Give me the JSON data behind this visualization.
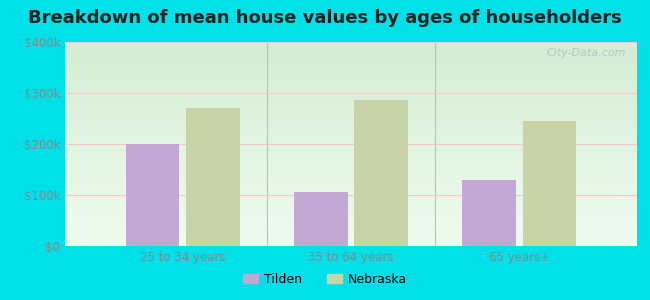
{
  "title": "Breakdown of mean house values by ages of householders",
  "categories": [
    "25 to 34 years",
    "35 to 64 years",
    "65 years+"
  ],
  "tilden_values": [
    200000,
    105000,
    130000
  ],
  "nebraska_values": [
    270000,
    287000,
    245000
  ],
  "tilden_color": "#c4a8d4",
  "nebraska_color": "#c8d4a8",
  "ylim": [
    0,
    400000
  ],
  "yticks": [
    0,
    100000,
    200000,
    300000,
    400000
  ],
  "ytick_labels": [
    "$0",
    "$100k",
    "$200k",
    "$300k",
    "$400k"
  ],
  "background_outer": "#00e0e8",
  "background_gradient_top": "#d4edd4",
  "background_gradient_bottom": "#f0fbf0",
  "grid_color": "#f5c8c8",
  "bar_width": 0.32,
  "legend_tilden": "Tilden",
  "legend_nebraska": "Nebraska",
  "title_fontsize": 13,
  "tick_color": "#888888",
  "separator_color": "#aaccaa",
  "watermark": "City-Data.com"
}
